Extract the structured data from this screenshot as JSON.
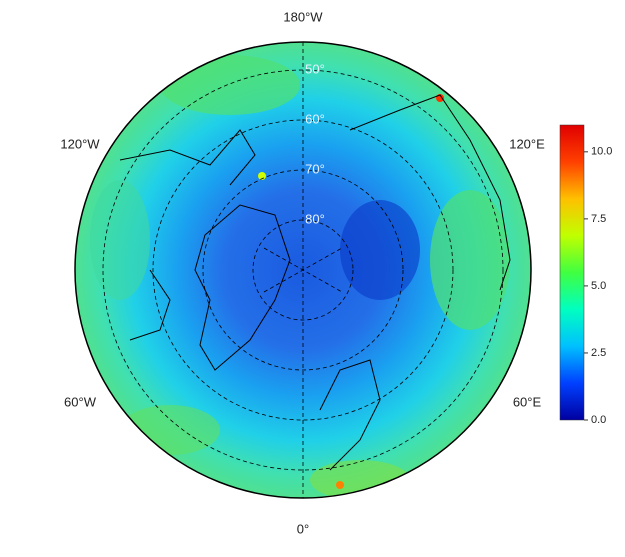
{
  "map": {
    "longitude_labels": [
      "180°W",
      "120°W",
      "120°E",
      "60°W",
      "60°E",
      "0°"
    ],
    "latitude_circles": [
      {
        "value": 50,
        "label": "50°"
      },
      {
        "value": 60,
        "label": "60°"
      },
      {
        "value": 70,
        "label": "70°"
      },
      {
        "value": 80,
        "label": "80°"
      }
    ],
    "colorbar": {
      "colors": [
        "#0000a0",
        "#0040ff",
        "#00c0ff",
        "#00ffc0",
        "#40ff40",
        "#c0ff00",
        "#ffc000",
        "#ff4000",
        "#e00000"
      ],
      "clim": [
        0,
        11
      ],
      "ticks": [
        {
          "value": 0,
          "label": "0.0"
        },
        {
          "value": 2.5,
          "label": "2.5"
        },
        {
          "value": 5,
          "label": "5.0"
        },
        {
          "value": 7.5,
          "label": "7.5"
        },
        {
          "value": 10,
          "label": "10.0"
        }
      ]
    }
  }
}
